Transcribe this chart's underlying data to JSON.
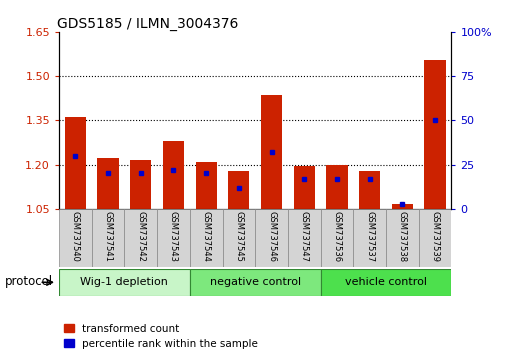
{
  "title": "GDS5185 / ILMN_3004376",
  "samples": [
    "GSM737540",
    "GSM737541",
    "GSM737542",
    "GSM737543",
    "GSM737544",
    "GSM737545",
    "GSM737546",
    "GSM737547",
    "GSM737536",
    "GSM737537",
    "GSM737538",
    "GSM737539"
  ],
  "transformed_count": [
    1.362,
    1.222,
    1.215,
    1.28,
    1.21,
    1.178,
    1.437,
    1.195,
    1.197,
    1.178,
    1.065,
    1.555
  ],
  "percentile_rank": [
    30.0,
    20.0,
    20.0,
    22.0,
    20.0,
    12.0,
    32.0,
    17.0,
    17.0,
    17.0,
    3.0,
    50.0
  ],
  "groups": [
    {
      "label": "Wig-1 depletion",
      "start": 0,
      "end": 3,
      "color": "#c8f5c8"
    },
    {
      "label": "negative control",
      "start": 4,
      "end": 7,
      "color": "#7de87d"
    },
    {
      "label": "vehicle control",
      "start": 8,
      "end": 11,
      "color": "#4de04d"
    }
  ],
  "protocol_label": "protocol",
  "ylim_left": [
    1.05,
    1.65
  ],
  "ylim_right": [
    0,
    100
  ],
  "yticks_left": [
    1.05,
    1.2,
    1.35,
    1.5,
    1.65
  ],
  "yticks_right": [
    0,
    25,
    50,
    75,
    100
  ],
  "bar_color_red": "#cc2200",
  "dot_color_blue": "#0000cc",
  "bar_width": 0.65,
  "baseline": 1.05,
  "tick_label_color_left": "#cc2200",
  "tick_label_color_right": "#0000cc",
  "gridline_values": [
    1.2,
    1.35,
    1.5
  ],
  "right_labels": [
    "0",
    "25",
    "50",
    "75",
    "100%"
  ]
}
